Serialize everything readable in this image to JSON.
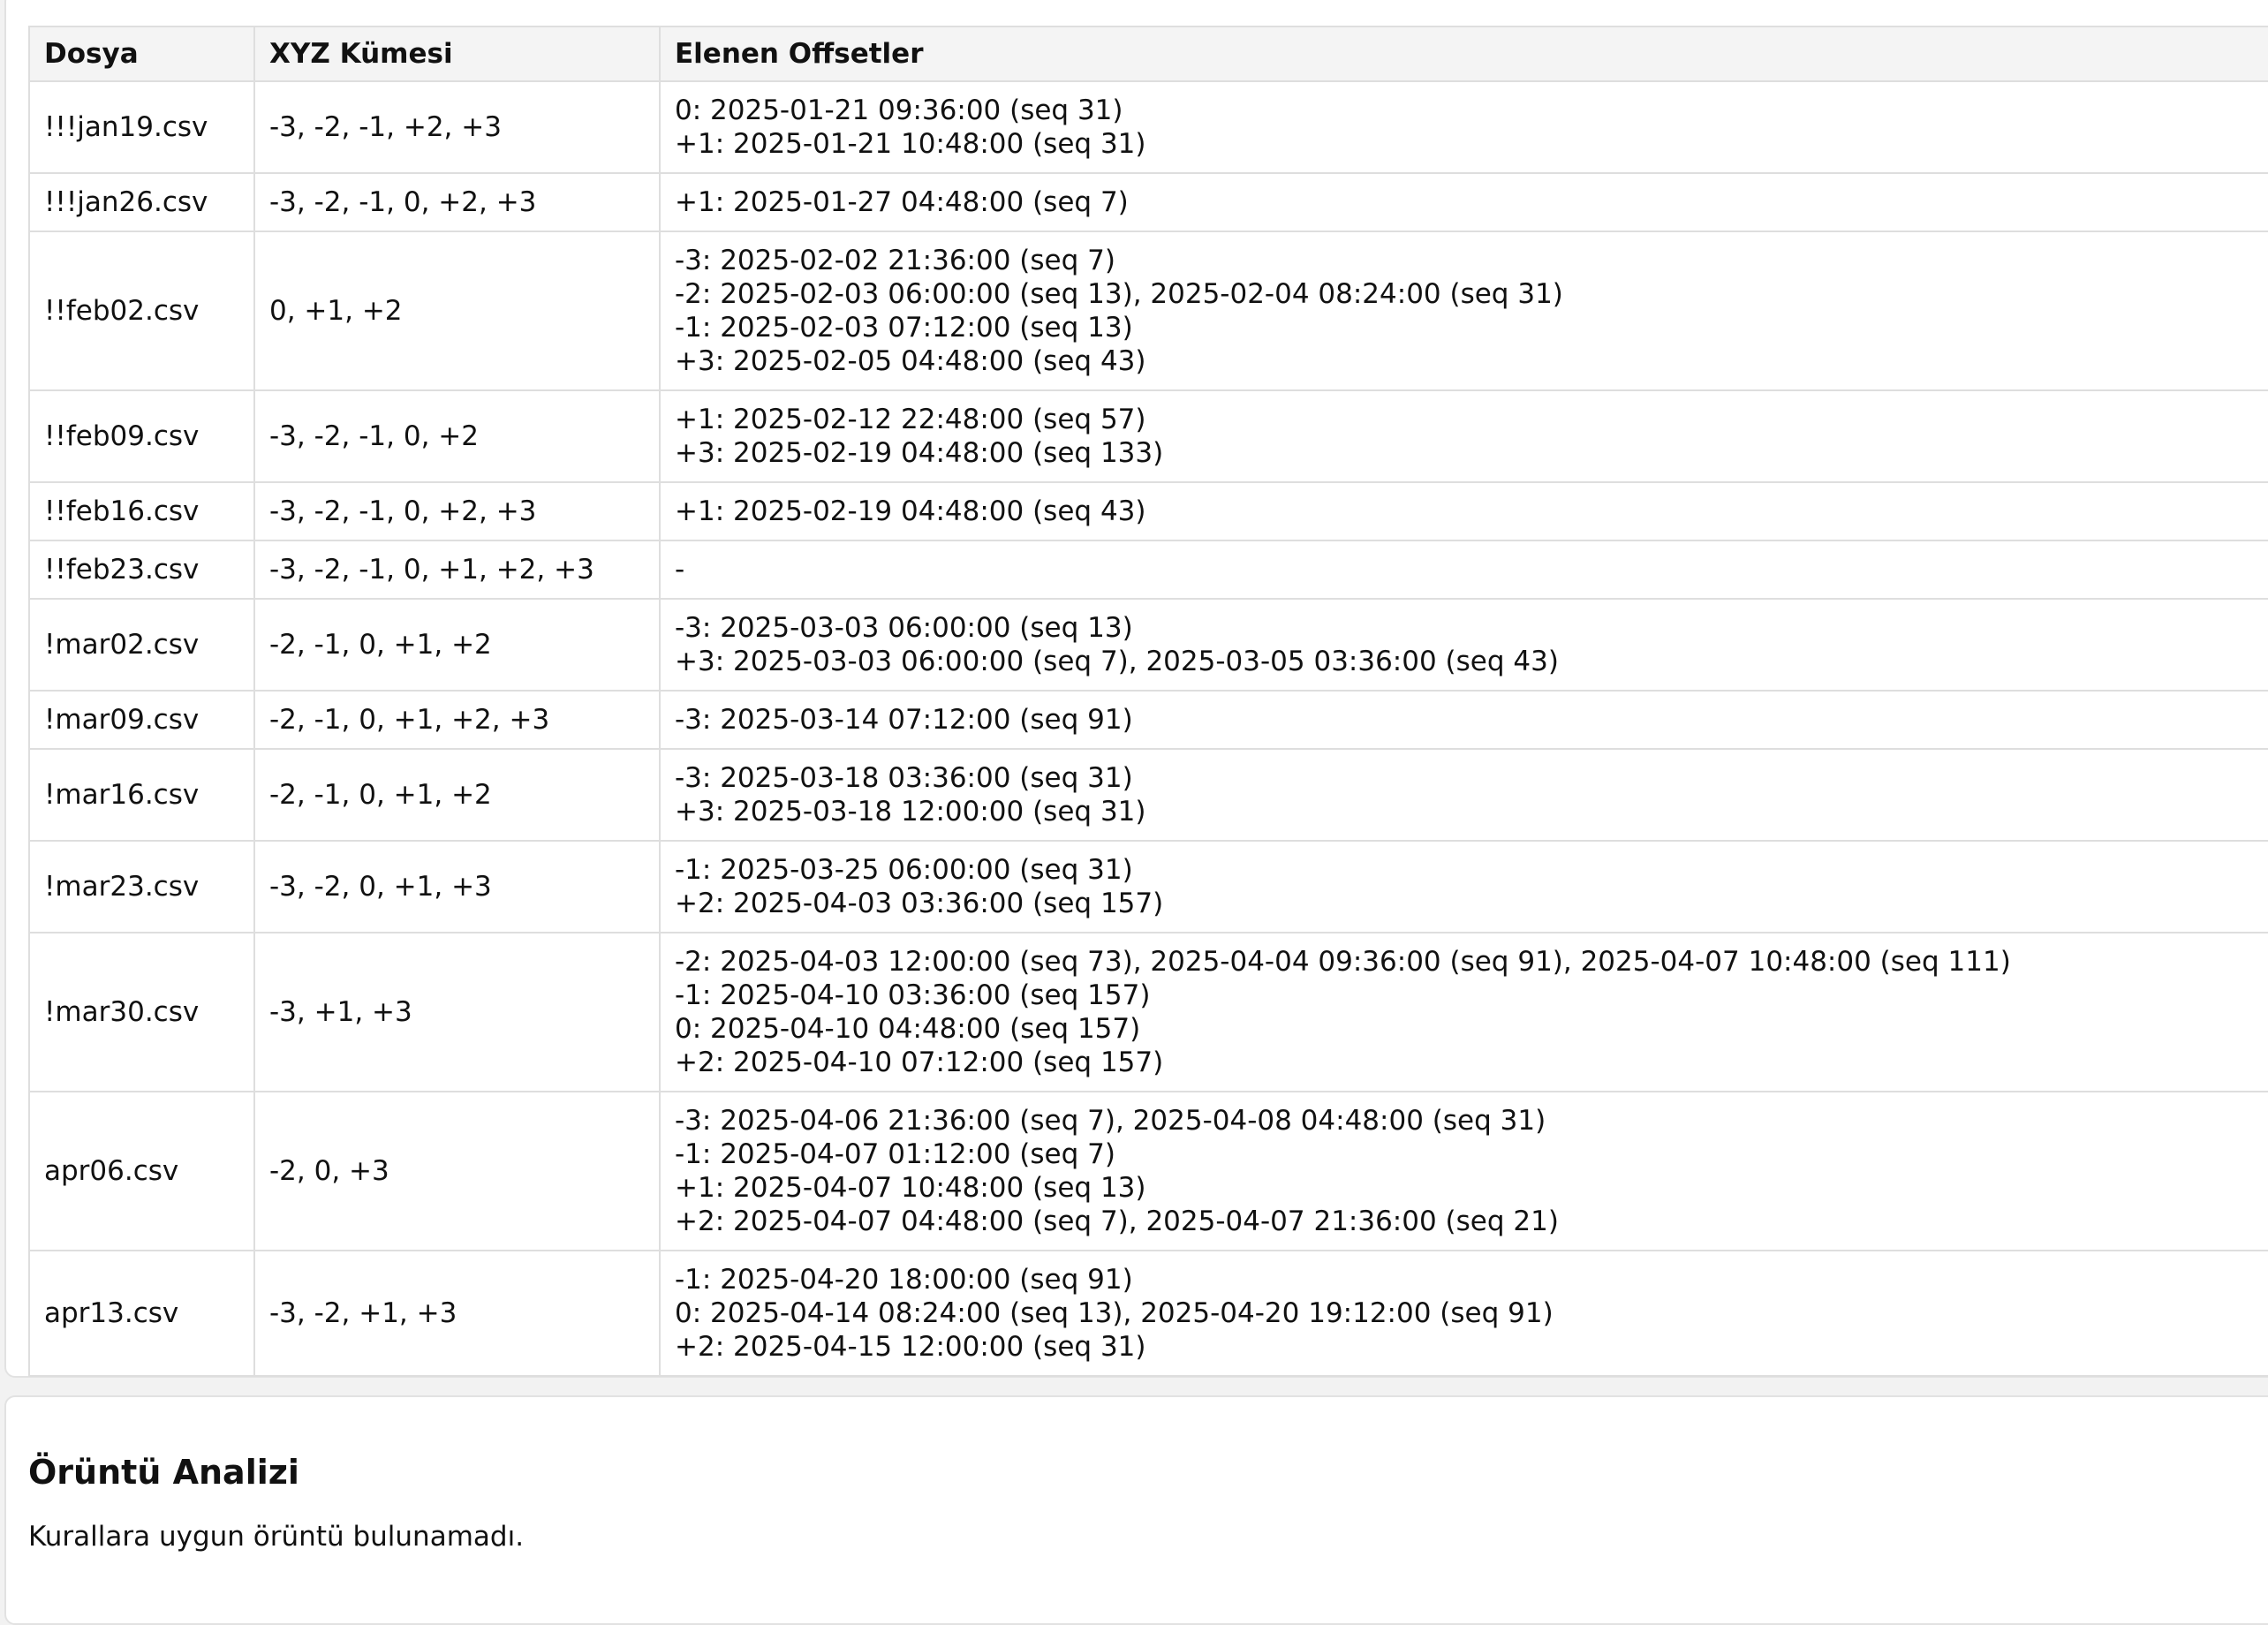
{
  "table": {
    "headers": [
      "Dosya",
      "XYZ Kümesi",
      "Elenen Offsetler"
    ],
    "rows": [
      {
        "file": "!!!jan19.csv",
        "set": "-3, -2, -1, +2, +3",
        "offsets": [
          "0: 2025-01-21 09:36:00 (seq 31)",
          "+1: 2025-01-21 10:48:00 (seq 31)"
        ]
      },
      {
        "file": "!!!jan26.csv",
        "set": "-3, -2, -1, 0, +2, +3",
        "offsets": [
          "+1: 2025-01-27 04:48:00 (seq 7)"
        ]
      },
      {
        "file": "!!feb02.csv",
        "set": "0, +1, +2",
        "offsets": [
          "-3: 2025-02-02 21:36:00 (seq 7)",
          "-2: 2025-02-03 06:00:00 (seq 13), 2025-02-04 08:24:00 (seq 31)",
          "-1: 2025-02-03 07:12:00 (seq 13)",
          "+3: 2025-02-05 04:48:00 (seq 43)"
        ]
      },
      {
        "file": "!!feb09.csv",
        "set": "-3, -2, -1, 0, +2",
        "offsets": [
          "+1: 2025-02-12 22:48:00 (seq 57)",
          "+3: 2025-02-19 04:48:00 (seq 133)"
        ]
      },
      {
        "file": "!!feb16.csv",
        "set": "-3, -2, -1, 0, +2, +3",
        "offsets": [
          "+1: 2025-02-19 04:48:00 (seq 43)"
        ]
      },
      {
        "file": "!!feb23.csv",
        "set": "-3, -2, -1, 0, +1, +2, +3",
        "offsets": [
          "-"
        ]
      },
      {
        "file": "!mar02.csv",
        "set": "-2, -1, 0, +1, +2",
        "offsets": [
          "-3: 2025-03-03 06:00:00 (seq 13)",
          "+3: 2025-03-03 06:00:00 (seq 7), 2025-03-05 03:36:00 (seq 43)"
        ]
      },
      {
        "file": "!mar09.csv",
        "set": "-2, -1, 0, +1, +2, +3",
        "offsets": [
          "-3: 2025-03-14 07:12:00 (seq 91)"
        ]
      },
      {
        "file": "!mar16.csv",
        "set": "-2, -1, 0, +1, +2",
        "offsets": [
          "-3: 2025-03-18 03:36:00 (seq 31)",
          "+3: 2025-03-18 12:00:00 (seq 31)"
        ]
      },
      {
        "file": "!mar23.csv",
        "set": "-3, -2, 0, +1, +3",
        "offsets": [
          "-1: 2025-03-25 06:00:00 (seq 31)",
          "+2: 2025-04-03 03:36:00 (seq 157)"
        ]
      },
      {
        "file": "!mar30.csv",
        "set": "-3, +1, +3",
        "offsets": [
          "-2: 2025-04-03 12:00:00 (seq 73), 2025-04-04 09:36:00 (seq 91), 2025-04-07 10:48:00 (seq 111)",
          "-1: 2025-04-10 03:36:00 (seq 157)",
          "0: 2025-04-10 04:48:00 (seq 157)",
          "+2: 2025-04-10 07:12:00 (seq 157)"
        ]
      },
      {
        "file": "apr06.csv",
        "set": "-2, 0, +3",
        "offsets": [
          "-3: 2025-04-06 21:36:00 (seq 7), 2025-04-08 04:48:00 (seq 31)",
          "-1: 2025-04-07 01:12:00 (seq 7)",
          "+1: 2025-04-07 10:48:00 (seq 13)",
          "+2: 2025-04-07 04:48:00 (seq 7), 2025-04-07 21:36:00 (seq 21)"
        ]
      },
      {
        "file": "apr13.csv",
        "set": "-3, -2, +1, +3",
        "offsets": [
          "-1: 2025-04-20 18:00:00 (seq 91)",
          "0: 2025-04-14 08:24:00 (seq 13), 2025-04-20 19:12:00 (seq 91)",
          "+2: 2025-04-15 12:00:00 (seq 31)"
        ]
      }
    ]
  },
  "analysis": {
    "title": "Örüntü Analizi",
    "message": "Kurallara uygun örüntü bulunamadı."
  }
}
